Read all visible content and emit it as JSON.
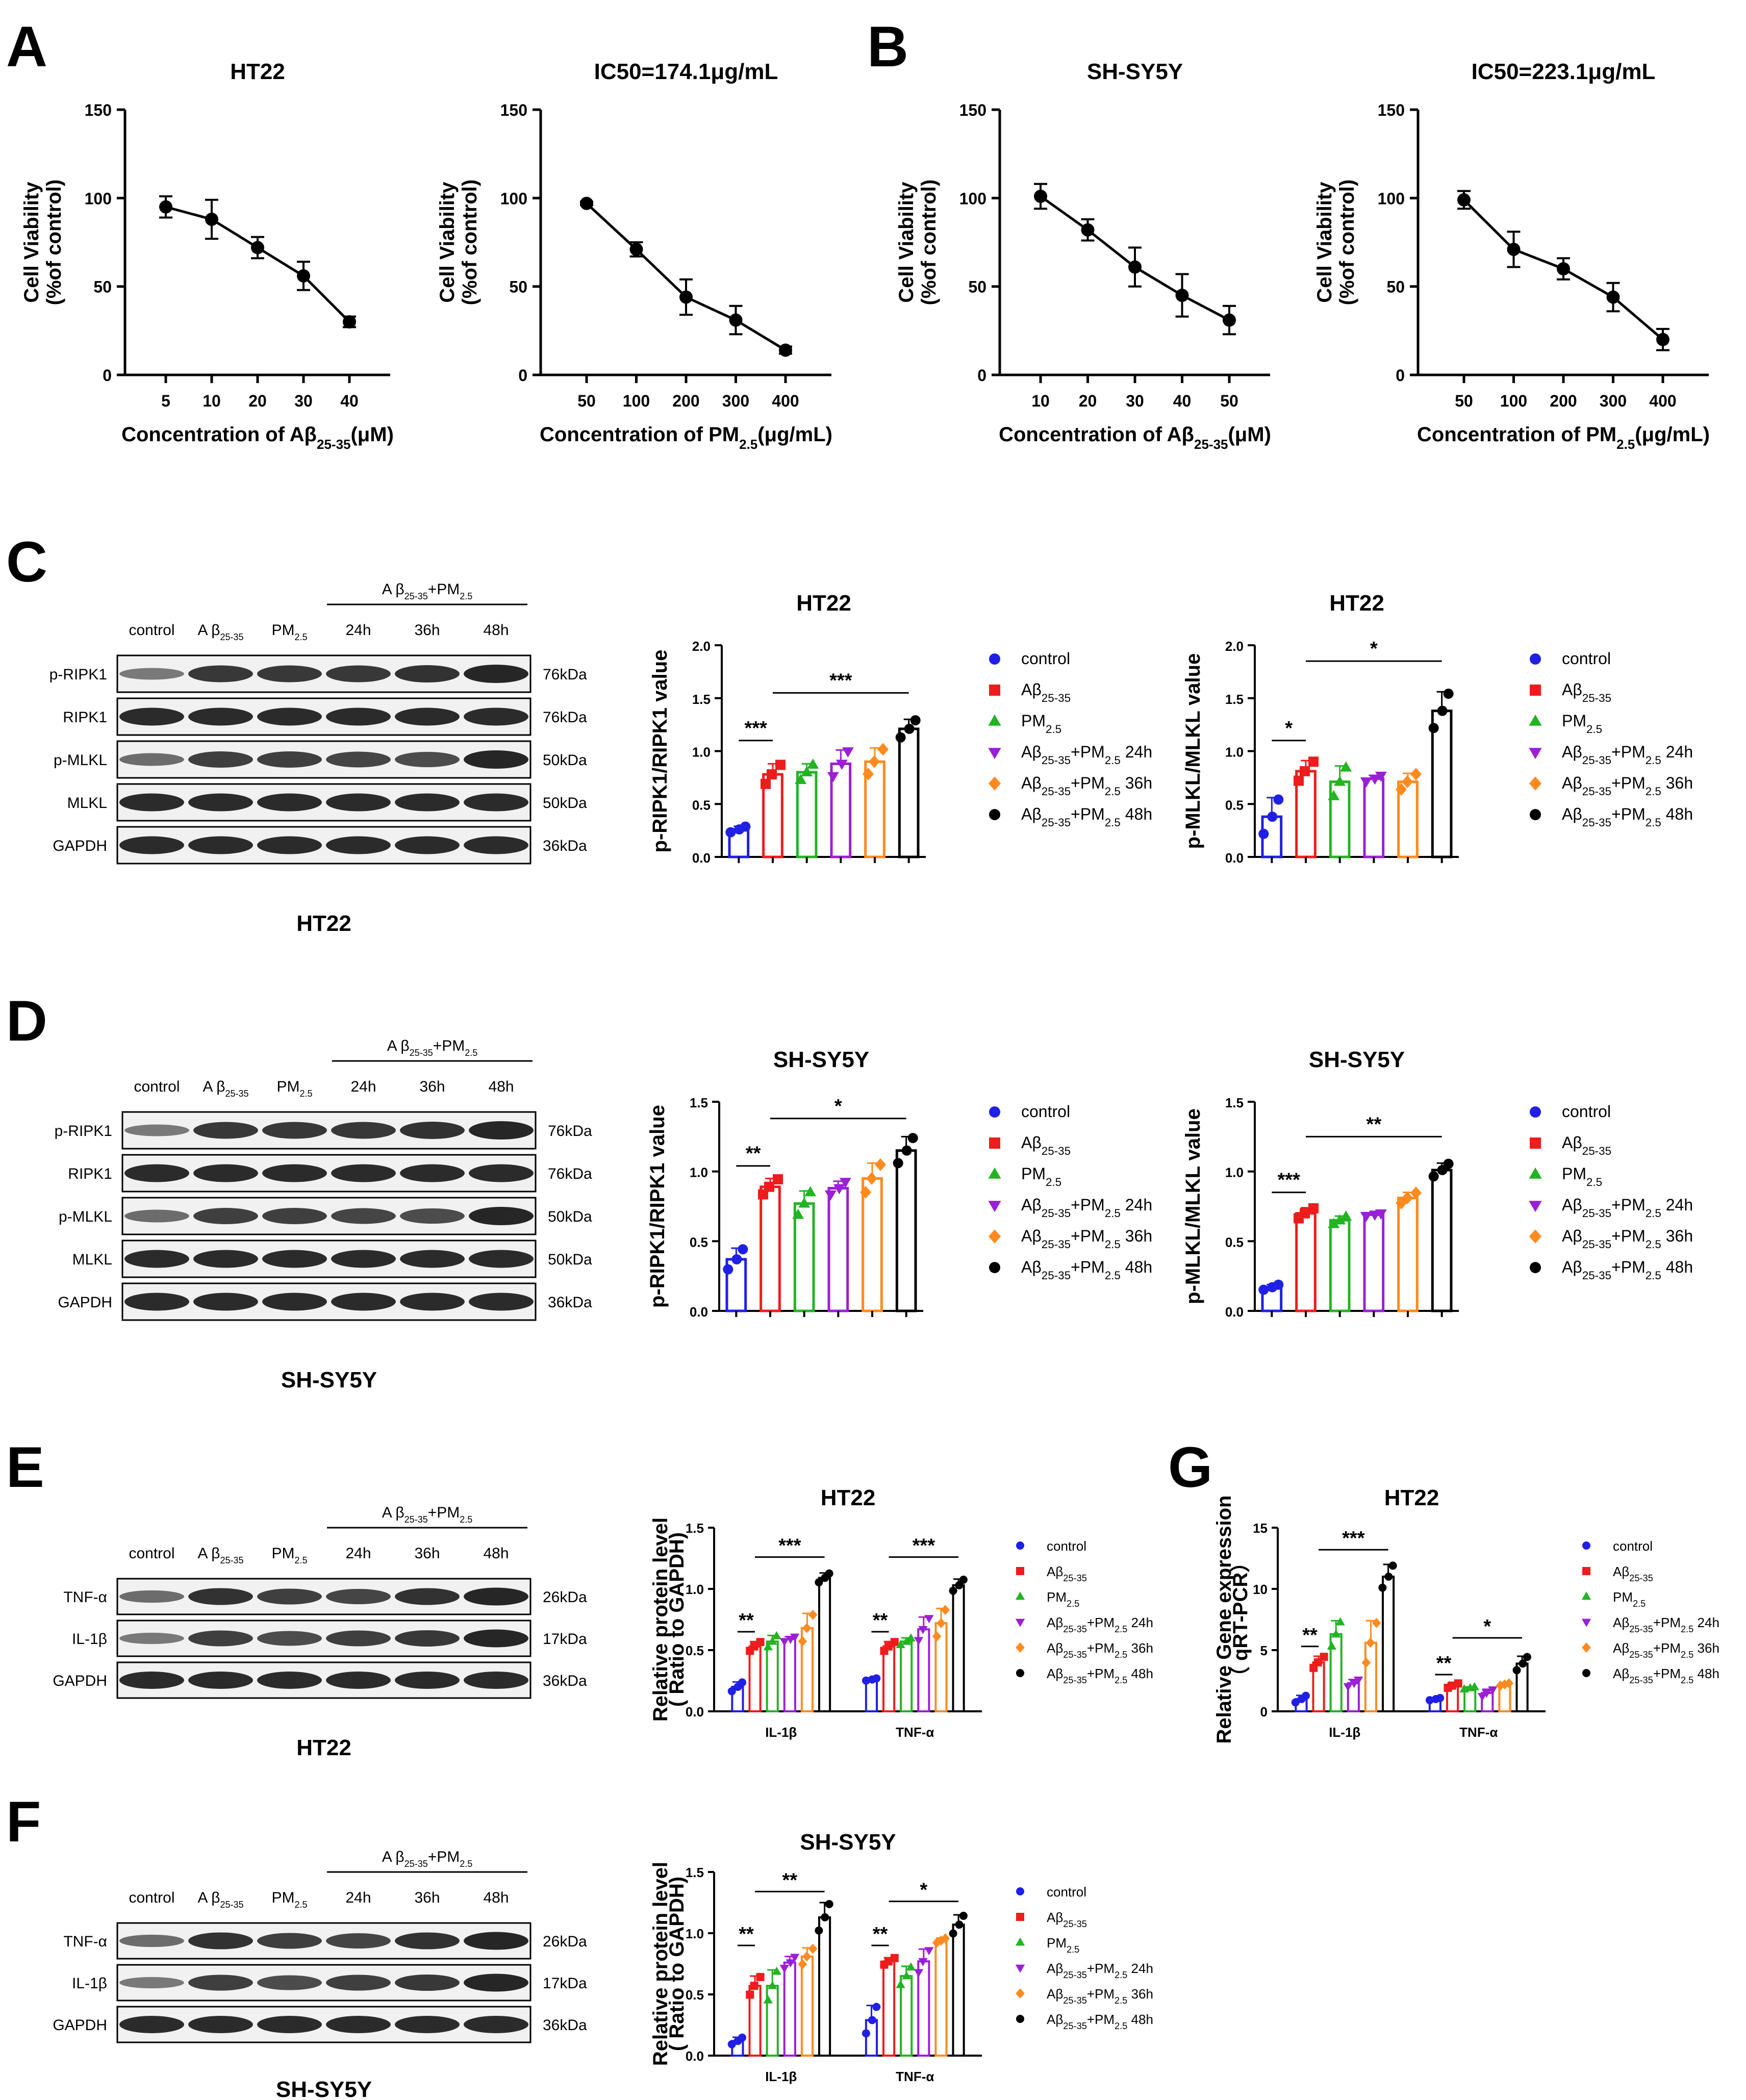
{
  "panels": {
    "A": {
      "label": "A",
      "charts": [
        {
          "id": "A1",
          "type": "line",
          "title": "HT22",
          "title_sub": "",
          "ylabel": [
            "Cell Viability",
            "(%of control)"
          ],
          "xlabel": {
            "pre": "Concentration of Aβ",
            "sub": "25-35",
            "post": "(μM)"
          },
          "categories": [
            "5",
            "10",
            "20",
            "30",
            "40"
          ],
          "values": [
            95,
            88,
            72,
            56,
            30
          ],
          "errors": [
            6,
            11,
            6,
            8,
            3
          ],
          "ylim": [
            0,
            150
          ],
          "yticks": [
            0,
            50,
            100,
            150
          ]
        },
        {
          "id": "A2",
          "type": "line",
          "title": "IC50=174.1",
          "title_sub": "μg/mL",
          "ylabel": [
            "Cell Viability",
            "(%of control)"
          ],
          "xlabel": {
            "pre": "Concentration of PM",
            "sub": "2.5",
            "post": "(μg/mL)"
          },
          "categories": [
            "50",
            "100",
            "200",
            "300",
            "400"
          ],
          "values": [
            97,
            71,
            44,
            31,
            14
          ],
          "errors": [
            1,
            4,
            10,
            8,
            2
          ],
          "ylim": [
            0,
            150
          ],
          "yticks": [
            0,
            50,
            100,
            150
          ]
        }
      ]
    },
    "B": {
      "label": "B",
      "charts": [
        {
          "id": "B1",
          "type": "line",
          "title": "SH-SY5Y",
          "title_sub": "",
          "ylabel": [
            "Cell Viability",
            "(%of control)"
          ],
          "xlabel": {
            "pre": "Concentration of Aβ",
            "sub": "25-35",
            "post": "(μM)"
          },
          "categories": [
            "10",
            "20",
            "30",
            "40",
            "50"
          ],
          "values": [
            101,
            82,
            61,
            45,
            31
          ],
          "errors": [
            7,
            6,
            11,
            12,
            8
          ],
          "ylim": [
            0,
            150
          ],
          "yticks": [
            0,
            50,
            100,
            150
          ]
        },
        {
          "id": "B2",
          "type": "line",
          "title": "IC50=223.1",
          "title_sub": "μg/mL",
          "ylabel": [
            "Cell Viability",
            "(%of control)"
          ],
          "xlabel": {
            "pre": "Concentration of PM",
            "sub": "2.5",
            "post": "(μg/mL)"
          },
          "categories": [
            "50",
            "100",
            "200",
            "300",
            "400"
          ],
          "values": [
            99,
            71,
            60,
            44,
            20
          ],
          "errors": [
            5,
            10,
            6,
            8,
            6
          ],
          "ylim": [
            0,
            150
          ],
          "yticks": [
            0,
            50,
            100,
            150
          ]
        }
      ]
    },
    "C": {
      "label": "C",
      "blot": {
        "caption": "HT22",
        "bracket": {
          "pre": "A β",
          "sub": "25-35",
          "mid": "+PM",
          "sub2": "2.5"
        },
        "lanes": [
          {
            "pre": "control",
            "sub": ""
          },
          {
            "pre": "A β",
            "sub": "25-35"
          },
          {
            "pre": "PM",
            "sub": "2.5"
          },
          {
            "pre": "24h",
            "sub": ""
          },
          {
            "pre": "36h",
            "sub": ""
          },
          {
            "pre": "48h",
            "sub": ""
          }
        ],
        "rows": [
          {
            "name": "p-RIPK1",
            "kda": "76kDa"
          },
          {
            "name": "RIPK1",
            "kda": "76kDa"
          },
          {
            "name": "p-MLKL",
            "kda": "50kDa"
          },
          {
            "name": "MLKL",
            "kda": "50kDa"
          },
          {
            "name": "GAPDH",
            "kda": "36kDa"
          }
        ]
      },
      "charts": [
        {
          "id": "C1",
          "type": "bar",
          "title": "HT22",
          "ylabel": [
            "p-RIPK1/RIPK1 value"
          ],
          "values": [
            0.26,
            0.78,
            0.8,
            0.88,
            0.9,
            1.21
          ],
          "errors": [
            0.03,
            0.1,
            0.08,
            0.13,
            0.13,
            0.09
          ],
          "ylim": [
            0,
            2.0
          ],
          "yticks": [
            "0.0",
            "0.5",
            "1.0",
            "1.5",
            "2.0"
          ],
          "sig": [
            {
              "label": "***",
              "from": 0,
              "to": 1,
              "y": 1.1
            },
            {
              "label": "***",
              "from": 1,
              "to": 5,
              "y": 1.55
            }
          ]
        },
        {
          "id": "C2",
          "type": "bar",
          "title": "HT22",
          "ylabel": [
            "p-MLKL/MLKL value"
          ],
          "values": [
            0.38,
            0.81,
            0.71,
            0.74,
            0.71,
            1.38
          ],
          "errors": [
            0.18,
            0.1,
            0.15,
            0.03,
            0.08,
            0.18
          ],
          "ylim": [
            0,
            2.0
          ],
          "yticks": [
            "0.0",
            "0.5",
            "1.0",
            "1.5",
            "2.0"
          ],
          "sig": [
            {
              "label": "*",
              "from": 0,
              "to": 1,
              "y": 1.1
            },
            {
              "label": "*",
              "from": 1,
              "to": 5,
              "y": 1.85
            }
          ]
        }
      ]
    },
    "D": {
      "label": "D",
      "blot": {
        "caption": "SH-SY5Y",
        "bracket": {
          "pre": "A β",
          "sub": "25-35",
          "mid": "+PM",
          "sub2": "2.5"
        },
        "lanes": [
          {
            "pre": "control",
            "sub": ""
          },
          {
            "pre": "A β",
            "sub": "25-35"
          },
          {
            "pre": "PM",
            "sub": "2.5"
          },
          {
            "pre": "24h",
            "sub": ""
          },
          {
            "pre": "36h",
            "sub": ""
          },
          {
            "pre": "48h",
            "sub": ""
          }
        ],
        "rows": [
          {
            "name": "p-RIPK1",
            "kda": "76kDa"
          },
          {
            "name": "RIPK1",
            "kda": "76kDa"
          },
          {
            "name": "p-MLKL",
            "kda": "50kDa"
          },
          {
            "name": "MLKL",
            "kda": "50kDa"
          },
          {
            "name": "GAPDH",
            "kda": "36kDa"
          }
        ]
      },
      "charts": [
        {
          "id": "D1",
          "type": "bar",
          "title": "SH-SY5Y",
          "ylabel": [
            "p-RIPK1/RIPK1 value"
          ],
          "values": [
            0.37,
            0.89,
            0.77,
            0.88,
            0.95,
            1.15
          ],
          "errors": [
            0.08,
            0.06,
            0.09,
            0.05,
            0.11,
            0.1
          ],
          "ylim": [
            0,
            1.5
          ],
          "yticks": [
            "0.0",
            "0.5",
            "1.0",
            "1.5"
          ],
          "sig": [
            {
              "label": "**",
              "from": 0,
              "to": 1,
              "y": 1.04
            },
            {
              "label": "*",
              "from": 1,
              "to": 5,
              "y": 1.38
            }
          ]
        },
        {
          "id": "D2",
          "type": "bar",
          "title": "SH-SY5Y",
          "ylabel": [
            "p-MLKL/MLKL value"
          ],
          "values": [
            0.17,
            0.7,
            0.65,
            0.69,
            0.81,
            1.01
          ],
          "errors": [
            0.02,
            0.04,
            0.03,
            0.01,
            0.04,
            0.05
          ],
          "ylim": [
            0,
            1.5
          ],
          "yticks": [
            "0.0",
            "0.5",
            "1.0",
            "1.5"
          ],
          "sig": [
            {
              "label": "***",
              "from": 0,
              "to": 1,
              "y": 0.85
            },
            {
              "label": "**",
              "from": 1,
              "to": 5,
              "y": 1.25
            }
          ]
        }
      ]
    },
    "E": {
      "label": "E",
      "blot": {
        "caption": "HT22",
        "bracket": {
          "pre": "A β",
          "sub": "25-35",
          "mid": "+PM",
          "sub2": "2.5"
        },
        "lanes": [
          {
            "pre": "control",
            "sub": ""
          },
          {
            "pre": "A β",
            "sub": "25-35"
          },
          {
            "pre": "PM",
            "sub": "2.5"
          },
          {
            "pre": "24h",
            "sub": ""
          },
          {
            "pre": "36h",
            "sub": ""
          },
          {
            "pre": "48h",
            "sub": ""
          }
        ],
        "rows": [
          {
            "name": "TNF-α",
            "kda": "26kDa"
          },
          {
            "name": "IL-1β",
            "kda": "17kDa"
          },
          {
            "name": "GAPDH",
            "kda": "36kDa"
          }
        ]
      },
      "chart": {
        "id": "E1",
        "type": "grouped_bar",
        "title": "HT22",
        "ylabel": [
          "Relative protein level",
          "( Ratio to GAPDH)"
        ],
        "groups": [
          "IL-1β",
          "TNF-α"
        ],
        "values": [
          [
            0.2,
            0.53,
            0.57,
            0.59,
            0.68,
            1.09
          ],
          [
            0.26,
            0.53,
            0.57,
            0.67,
            0.72,
            1.03
          ]
        ],
        "errors": [
          [
            0.04,
            0.04,
            0.05,
            0.02,
            0.12,
            0.04
          ],
          [
            0.01,
            0.04,
            0.03,
            0.1,
            0.12,
            0.05
          ]
        ],
        "ylim": [
          0,
          1.5
        ],
        "yticks": [
          "0.0",
          "0.5",
          "1.0",
          "1.5"
        ],
        "sig": [
          {
            "label": "**",
            "group": 0,
            "from": 0,
            "to": 1,
            "y": 0.65
          },
          {
            "label": "***",
            "group": 0,
            "from": 1,
            "to": 5,
            "y": 1.26
          },
          {
            "label": "**",
            "group": 1,
            "from": 0,
            "to": 1,
            "y": 0.65
          },
          {
            "label": "***",
            "group": 1,
            "from": 1,
            "to": 5,
            "y": 1.26
          }
        ]
      }
    },
    "F": {
      "label": "F",
      "blot": {
        "caption": "SH-SY5Y",
        "bracket": {
          "pre": "A β",
          "sub": "25-35",
          "mid": "+PM",
          "sub2": "2.5"
        },
        "lanes": [
          {
            "pre": "control",
            "sub": ""
          },
          {
            "pre": "A β",
            "sub": "25-35"
          },
          {
            "pre": "PM",
            "sub": "2.5"
          },
          {
            "pre": "24h",
            "sub": ""
          },
          {
            "pre": "36h",
            "sub": ""
          },
          {
            "pre": "48h",
            "sub": ""
          }
        ],
        "rows": [
          {
            "name": "TNF-α",
            "kda": "26kDa"
          },
          {
            "name": "IL-1β",
            "kda": "17kDa"
          },
          {
            "name": "GAPDH",
            "kda": "36kDa"
          }
        ]
      },
      "chart": {
        "id": "F1",
        "type": "grouped_bar",
        "title": "SH-SY5Y",
        "ylabel": [
          "Relative protein level",
          "( Ratio to GAPDH)"
        ],
        "groups": [
          "IL-1β",
          "TNF-α"
        ],
        "values": [
          [
            0.12,
            0.57,
            0.57,
            0.76,
            0.81,
            1.13
          ],
          [
            0.29,
            0.77,
            0.65,
            0.77,
            0.94,
            1.07
          ]
        ],
        "errors": [
          [
            0.03,
            0.08,
            0.13,
            0.05,
            0.07,
            0.12
          ],
          [
            0.12,
            0.03,
            0.08,
            0.1,
            0.02,
            0.08
          ]
        ],
        "ylim": [
          0,
          1.5
        ],
        "yticks": [
          "0.0",
          "0.5",
          "1.0",
          "1.5"
        ],
        "sig": [
          {
            "label": "**",
            "group": 0,
            "from": 0,
            "to": 1,
            "y": 0.9
          },
          {
            "label": "**",
            "group": 0,
            "from": 1,
            "to": 5,
            "y": 1.34
          },
          {
            "label": "**",
            "group": 1,
            "from": 0,
            "to": 1,
            "y": 0.9
          },
          {
            "label": "*",
            "group": 1,
            "from": 1,
            "to": 5,
            "y": 1.26
          }
        ]
      }
    },
    "G": {
      "label": "G",
      "chart": {
        "id": "G1",
        "type": "grouped_bar",
        "title": "HT22",
        "ylabel": [
          "Relative Gene expression",
          "（ qRT-PCR）"
        ],
        "groups": [
          "IL-1β",
          "TNF-α"
        ],
        "values": [
          [
            1.0,
            4.0,
            6.3,
            2.3,
            5.6,
            11.0
          ],
          [
            1.0,
            2.1,
            1.9,
            1.5,
            2.2,
            3.9
          ]
        ],
        "errors": [
          [
            0.3,
            0.5,
            1.1,
            0.3,
            1.8,
            1.0
          ],
          [
            0.1,
            0.2,
            0.1,
            0.3,
            0.1,
            0.6
          ]
        ],
        "ylim": [
          0,
          15
        ],
        "yticks": [
          "0",
          "5",
          "10",
          "15"
        ],
        "sig": [
          {
            "label": "**",
            "group": 0,
            "from": 0,
            "to": 1,
            "y": 5.3
          },
          {
            "label": "***",
            "group": 0,
            "from": 1,
            "to": 5,
            "y": 13.2
          },
          {
            "label": "**",
            "group": 1,
            "from": 0,
            "to": 1,
            "y": 3.0
          },
          {
            "label": "*",
            "group": 1,
            "from": 1,
            "to": 5,
            "y": 6.0
          }
        ]
      }
    }
  },
  "legend": [
    {
      "pre": "control",
      "sub": "",
      "post": ""
    },
    {
      "pre": "Aβ",
      "sub": "25-35",
      "post": ""
    },
    {
      "pre": "PM",
      "sub": "2.5",
      "post": ""
    },
    {
      "pre": "Aβ",
      "sub": "25-35",
      "post": "+PM",
      "sub2": "2.5",
      "post2": " 24h"
    },
    {
      "pre": "Aβ",
      "sub": "25-35",
      "post": "+PM",
      "sub2": "2.5",
      "post2": " 36h"
    },
    {
      "pre": "Aβ",
      "sub": "25-35",
      "post": "+PM",
      "sub2": "2.5",
      "post2": " 48h"
    }
  ],
  "colors": {
    "groups": [
      "#1f1fe6",
      "#ee1c1c",
      "#22b422",
      "#9b1fd6",
      "#ff8a1f",
      "#000000"
    ]
  }
}
